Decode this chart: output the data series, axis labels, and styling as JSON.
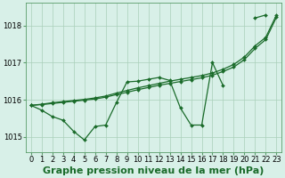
{
  "title": "Graphe pression niveau de la mer (hPa)",
  "xlabel_hours": [
    0,
    1,
    2,
    3,
    4,
    5,
    6,
    7,
    8,
    9,
    10,
    11,
    12,
    13,
    14,
    15,
    16,
    17,
    18,
    19,
    20,
    21,
    22,
    23
  ],
  "x_tick_labels": [
    "0",
    "1",
    "2",
    "3",
    "4",
    "5",
    "6",
    "7",
    "8",
    "9",
    "10",
    "11",
    "12",
    "13",
    "14",
    "15",
    "16",
    "17",
    "18",
    "19",
    "20",
    "21",
    "22",
    "23"
  ],
  "ylim": [
    1014.6,
    1018.6
  ],
  "yticks": [
    1015,
    1016,
    1017,
    1018
  ],
  "line_straight1": [
    1015.85,
    1015.88,
    1015.92,
    1015.95,
    1015.98,
    1016.01,
    1016.05,
    1016.1,
    1016.18,
    1016.25,
    1016.32,
    1016.38,
    1016.44,
    1016.5,
    1016.55,
    1016.6,
    1016.65,
    1016.72,
    1016.82,
    1016.95,
    1017.15,
    1017.45,
    1017.68,
    1018.28
  ],
  "line_straight2": [
    1015.85,
    1015.87,
    1015.9,
    1015.93,
    1015.96,
    1015.99,
    1016.02,
    1016.07,
    1016.14,
    1016.2,
    1016.27,
    1016.33,
    1016.39,
    1016.44,
    1016.49,
    1016.54,
    1016.59,
    1016.66,
    1016.76,
    1016.88,
    1017.08,
    1017.38,
    1017.62,
    1018.22
  ],
  "line_zigzag": [
    1015.85,
    1015.72,
    1015.55,
    1015.45,
    1015.15,
    1014.92,
    1015.28,
    1015.32,
    1015.92,
    1016.48,
    1016.5,
    1016.55,
    1016.6,
    1016.52,
    1015.78,
    1015.32,
    1015.32,
    1017.0,
    1016.38,
    null,
    null,
    1018.2,
    1018.28,
    null
  ],
  "background_color": "#d8f0e8",
  "grid_color": "#aacfba",
  "line_color": "#1a6b2a",
  "marker": "D",
  "marker_size": 2.0,
  "line_width": 0.9,
  "title_fontsize": 8.0,
  "tick_fontsize": 6.0
}
